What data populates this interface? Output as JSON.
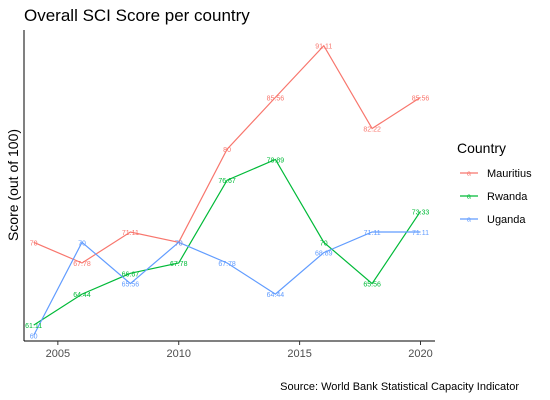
{
  "chart_data": {
    "type": "line",
    "title": "Overall SCI Score per country",
    "xlabel": "",
    "ylabel": "Score (out of 100)",
    "caption": "Source: World Bank Statistical Capacity Indicator",
    "x": [
      2004,
      2006,
      2008,
      2010,
      2012,
      2014,
      2016,
      2018,
      2020
    ],
    "xticks": [
      "2005",
      "2010",
      "2015",
      "2020"
    ],
    "xlim": [
      2003.6,
      2020.6
    ],
    "ylim": [
      59.4,
      92.8
    ],
    "grid": false,
    "legend": {
      "title": "Country",
      "position": "right"
    },
    "series": [
      {
        "name": "Mauritius",
        "color": "#F8766D",
        "values": [
          70,
          67.78,
          71.11,
          70,
          80,
          85.56,
          91.11,
          82.22,
          85.56
        ],
        "labels": [
          "70",
          "67.78",
          "71.11",
          "70",
          "80",
          "85.56",
          "91.11",
          "82.22",
          "85.56"
        ]
      },
      {
        "name": "Rwanda",
        "color": "#00BA38",
        "values": [
          61.11,
          64.44,
          66.67,
          67.78,
          76.67,
          78.89,
          70,
          65.56,
          73.33
        ],
        "labels": [
          "61.11",
          "64.44",
          "66.67",
          "67.78",
          "76.67",
          "78.89",
          "70",
          "65.56",
          "73.33"
        ]
      },
      {
        "name": "Uganda",
        "color": "#619CFF",
        "values": [
          60,
          70,
          65.56,
          70,
          67.78,
          64.44,
          68.89,
          71.11,
          71.11
        ],
        "labels": [
          "60",
          "70",
          "65.56",
          "70",
          "67.78",
          "64.44",
          "68.89",
          "71.11",
          "71.11"
        ]
      }
    ]
  }
}
